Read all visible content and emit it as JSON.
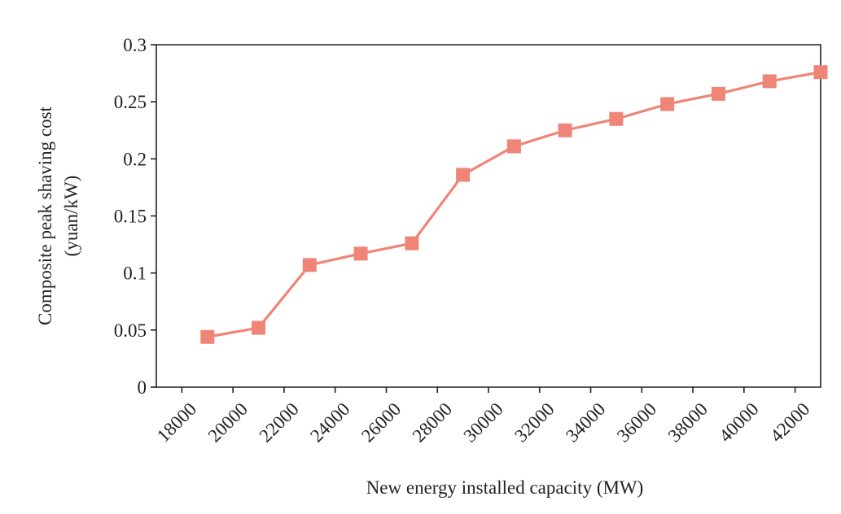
{
  "chart_data": {
    "type": "line",
    "title": "",
    "xlabel": "New energy installed capacity (MW)",
    "ylabel_lines": [
      "Composite peak shaving cost",
      "(yuan/kW)"
    ],
    "x_ticks": [
      "18000",
      "20000",
      "22000",
      "24000",
      "26000",
      "28000",
      "30000",
      "32000",
      "34000",
      "36000",
      "38000",
      "40000",
      "42000"
    ],
    "y_ticks": [
      "0",
      "0.05",
      "0.1",
      "0.15",
      "0.2",
      "0.25",
      "0.3"
    ],
    "xlim": [
      17000,
      43000
    ],
    "ylim": [
      0,
      0.3
    ],
    "grid": false,
    "series": [
      {
        "name": "Composite peak shaving cost",
        "color": "#ee8577",
        "marker": "square",
        "x": [
          19000,
          21000,
          23000,
          25000,
          27000,
          29000,
          31000,
          33000,
          35000,
          37000,
          39000,
          41000,
          43000
        ],
        "values": [
          0.044,
          0.052,
          0.107,
          0.117,
          0.126,
          0.186,
          0.211,
          0.225,
          0.235,
          0.248,
          0.257,
          0.268,
          0.276
        ]
      }
    ]
  }
}
